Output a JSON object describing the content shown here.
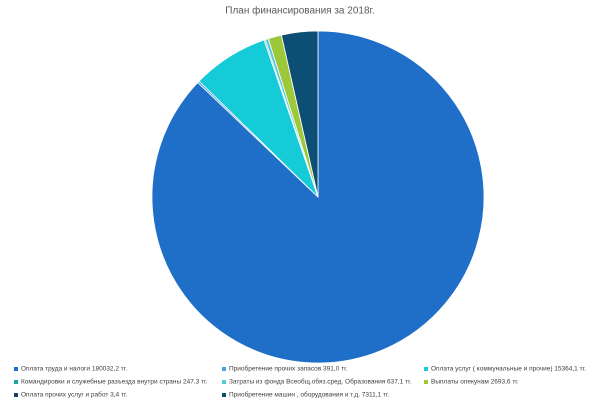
{
  "chart_data": {
    "type": "pie",
    "title": "План финансирования за 2018г.",
    "categories": [
      "Оплата труда и налоги 180032,2 тг.",
      "Приобретение прочих запасов 391,0 тг.",
      "Оплата услуг ( коммунальные и прочие) 15364,1 тг.",
      "Командировки и служебные разъезда внутри страны 247,3 тг.",
      "Затраты из фонда Всеобщ.обяз.сред. Образования 637,1 тг.",
      "Выплаты опекунам 2693,6 тг.",
      "Оплата прочих услуг и работ 3,4 тг.",
      "Приобретение машин , оборудования и т.д. 7311,1 тг."
    ],
    "values": [
      180032.2,
      391.0,
      15364.1,
      247.3,
      637.1,
      2693.6,
      3.4,
      7311.1
    ],
    "colors": [
      "#1f6fc8",
      "#4aa3df",
      "#16cbd8",
      "#17a89a",
      "#5bc6e0",
      "#9cc83a",
      "#1b3f6e",
      "#0d4f74"
    ],
    "legend": "bottom"
  }
}
